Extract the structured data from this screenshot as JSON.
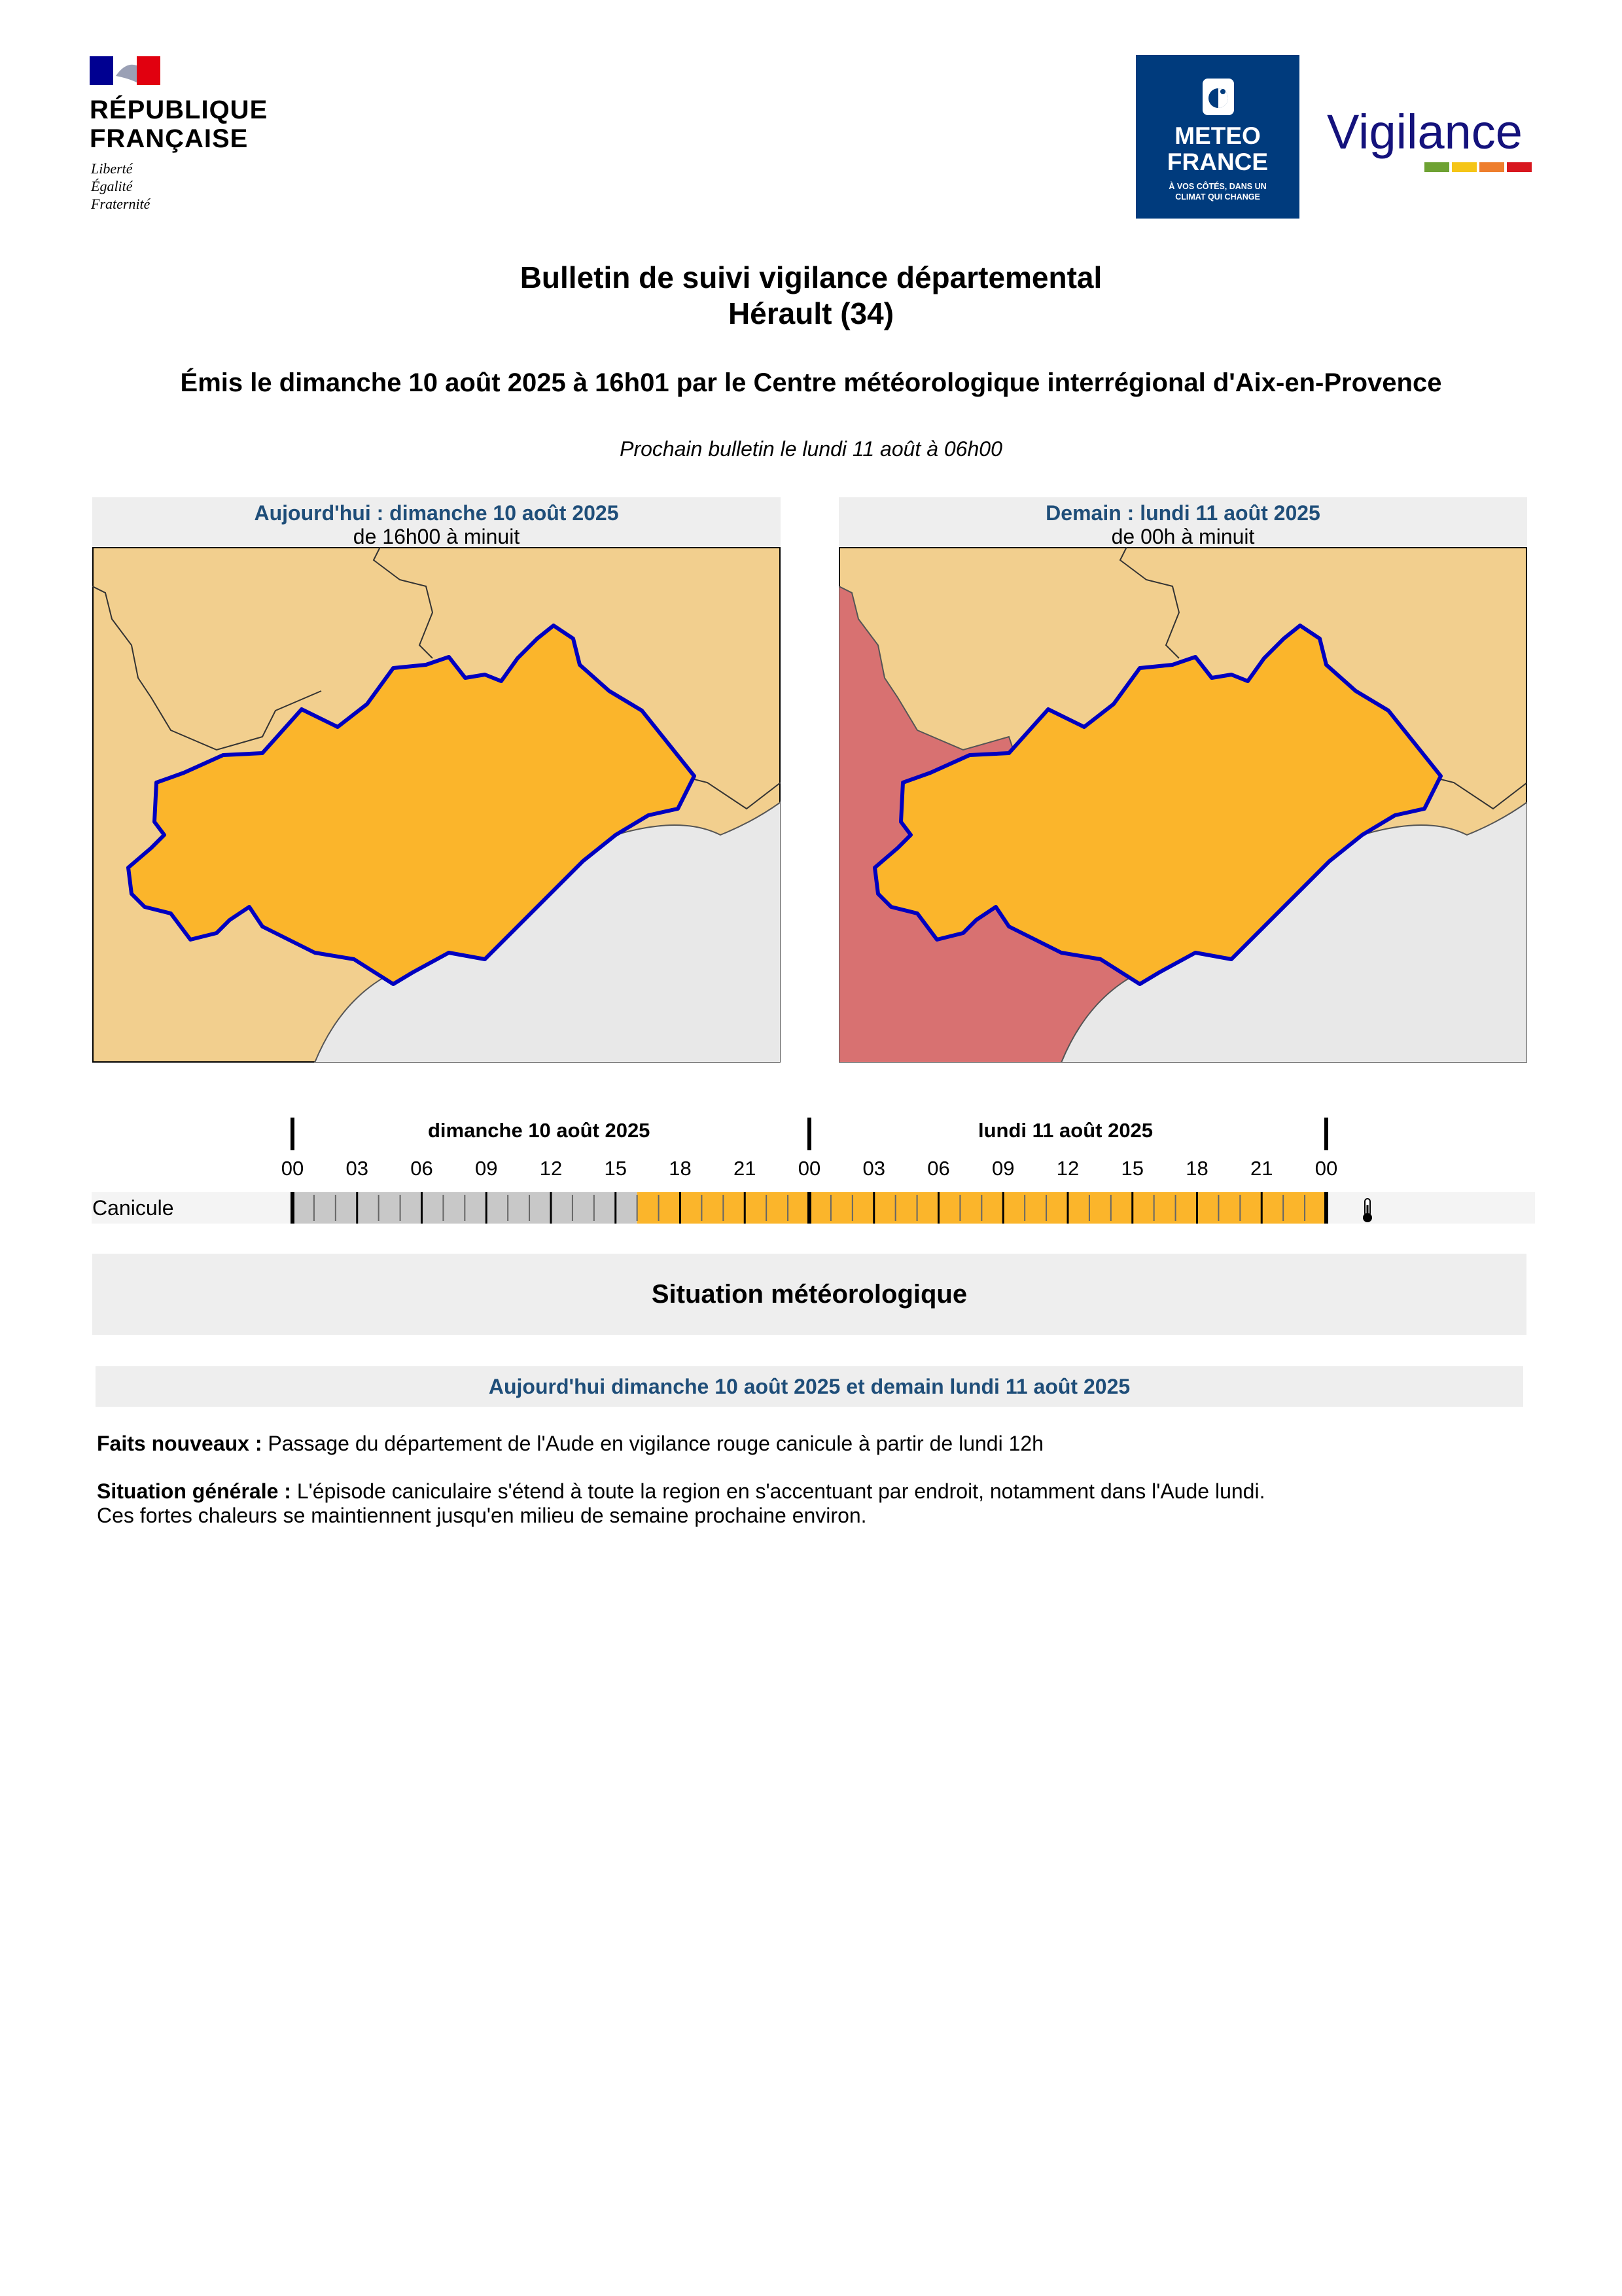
{
  "header": {
    "republique": [
      "RÉPUBLIQUE",
      "FRANÇAISE"
    ],
    "devise": [
      "Liberté",
      "Égalité",
      "Fraternité"
    ],
    "meteo_france": [
      "METEO",
      "FRANCE"
    ],
    "meteo_france_tagline": [
      "À VOS CÔTÉS, DANS UN",
      "CLIMAT QUI CHANGE"
    ],
    "vigilance_word": "Vigilance",
    "vigilance_colors": [
      "#6ea233",
      "#f5c517",
      "#ee7e2d",
      "#d8171f"
    ]
  },
  "title": {
    "line1": "Bulletin de suivi vigilance départemental",
    "line2": "Hérault (34)"
  },
  "issued": "Émis le dimanche 10 août 2025 à 16h01 par le Centre météorologique interrégional d'Aix-en-Provence",
  "next_bulletin": "Prochain bulletin le lundi 11 août à 06h00",
  "maps": {
    "today": {
      "title": "Aujourd'hui : dimanche 10 août 2025",
      "period": "de 16h00 à minuit"
    },
    "tomorrow": {
      "title": "Demain : lundi 11 août 2025",
      "period": "de 00h à minuit"
    },
    "colors": {
      "orange": "#fbb52b",
      "light_orange": "#f2cf8e",
      "red": "#d87171",
      "sea": "#e8e8e8",
      "border": "#0000c0"
    }
  },
  "timeline": {
    "day1": "dimanche 10 août 2025",
    "day2": "lundi 11 août 2025",
    "hours": [
      "00",
      "03",
      "06",
      "09",
      "12",
      "15",
      "18",
      "21",
      "00",
      "03",
      "06",
      "09",
      "12",
      "15",
      "18",
      "21",
      "00"
    ],
    "phenomenon": "Canicule",
    "phenomenon_icon": "thermometer-icon",
    "levels": {
      "grey_until_hour": 16,
      "orange_from_hour": 16,
      "grey_color": "#c8c8c8",
      "orange_color": "#fbb52b"
    }
  },
  "situation": {
    "heading": "Situation météorologique",
    "period": "Aujourd'hui dimanche 10 août 2025 et demain lundi 11 août 2025",
    "faits_label": "Faits nouveaux :",
    "faits_text": " Passage du département de l'Aude en vigilance rouge canicule à partir de lundi 12h",
    "generale_label": "Situation générale :",
    "generale_text": " L'épisode caniculaire s'étend à toute la region en s'accentuant par endroit, notamment dans l'Aude lundi.",
    "generale_text2": "Ces fortes chaleurs se maintiennent jusqu'en milieu de semaine prochaine environ."
  }
}
